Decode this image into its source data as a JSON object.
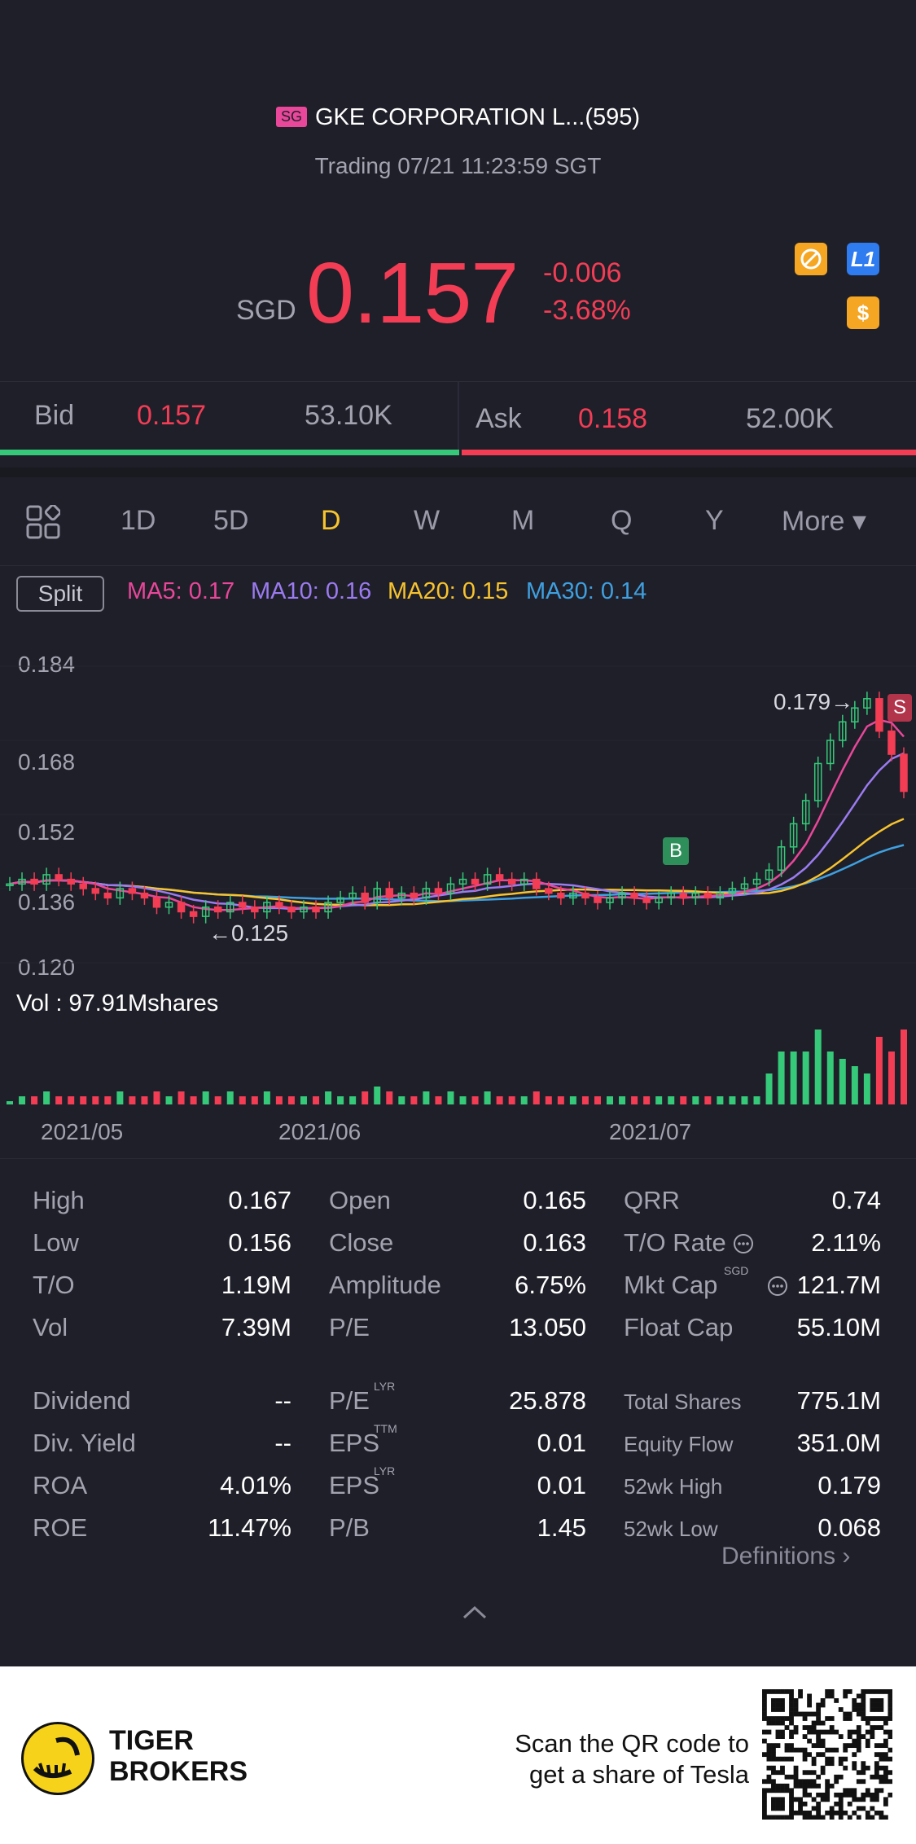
{
  "header": {
    "market_badge": "SG",
    "title": "GKE CORPORATION L...(595)",
    "status": "Trading 07/21 11:23:59 SGT"
  },
  "quote": {
    "currency": "SGD",
    "price": "0.157",
    "change": "-0.006",
    "change_pct": "-3.68%",
    "level_badge": "L1",
    "dollar_badge": "$"
  },
  "bid_ask": {
    "bid_label": "Bid",
    "bid_price": "0.157",
    "bid_size": "53.10K",
    "ask_label": "Ask",
    "ask_price": "0.158",
    "ask_size": "52.00K"
  },
  "period_tabs": [
    "1D",
    "5D",
    "D",
    "W",
    "M",
    "Q",
    "Y",
    "More ▾"
  ],
  "active_tab": "D",
  "indicators": {
    "split_label": "Split",
    "ma5": "MA5: 0.17",
    "ma10": "MA10: 0.16",
    "ma20": "MA20: 0.15",
    "ma30": "MA30: 0.14",
    "colors": {
      "ma5": "#e8479a",
      "ma10": "#9b7bf0",
      "ma20": "#f7c32e",
      "ma30": "#3fa0e0"
    }
  },
  "chart_data": {
    "type": "candlestick",
    "y_ticks": [
      "0.184",
      "0.168",
      "0.152",
      "0.136",
      "0.120"
    ],
    "ylim": [
      0.12,
      0.184
    ],
    "x_ticks": [
      "2021/05",
      "2021/06",
      "2021/07"
    ],
    "annotations": {
      "high": "0.179",
      "low": "0.125",
      "buy_marker": "B",
      "sell_marker": "S"
    },
    "closes": [
      0.137,
      0.138,
      0.137,
      0.139,
      0.138,
      0.137,
      0.136,
      0.135,
      0.134,
      0.136,
      0.135,
      0.134,
      0.132,
      0.133,
      0.131,
      0.13,
      0.132,
      0.131,
      0.133,
      0.132,
      0.131,
      0.133,
      0.132,
      0.131,
      0.132,
      0.131,
      0.133,
      0.134,
      0.135,
      0.133,
      0.136,
      0.134,
      0.135,
      0.134,
      0.136,
      0.135,
      0.137,
      0.138,
      0.137,
      0.139,
      0.138,
      0.137,
      0.138,
      0.136,
      0.135,
      0.134,
      0.135,
      0.134,
      0.133,
      0.134,
      0.135,
      0.134,
      0.133,
      0.134,
      0.135,
      0.134,
      0.135,
      0.134,
      0.135,
      0.136,
      0.137,
      0.138,
      0.14,
      0.145,
      0.15,
      0.155,
      0.163,
      0.168,
      0.172,
      0.175,
      0.177,
      0.17,
      0.165,
      0.157
    ],
    "volume_label": "Vol : 97.91Mshares"
  },
  "stats": {
    "col1": [
      {
        "label": "High",
        "value": "0.167"
      },
      {
        "label": "Low",
        "value": "0.156"
      },
      {
        "label": "T/O",
        "value": "1.19M"
      },
      {
        "label": "Vol",
        "value": "7.39M"
      },
      {
        "label": "Dividend",
        "value": "--"
      },
      {
        "label": "Div. Yield",
        "value": "--"
      },
      {
        "label": "ROA",
        "value": "4.01%"
      },
      {
        "label": "ROE",
        "value": "11.47%"
      }
    ],
    "col2": [
      {
        "label": "Open",
        "value": "0.165",
        "sup": ""
      },
      {
        "label": "Close",
        "value": "0.163",
        "sup": ""
      },
      {
        "label": "Amplitude",
        "value": "6.75%",
        "sup": ""
      },
      {
        "label": "P/E",
        "value": "13.050",
        "sup": ""
      },
      {
        "label": "P/E",
        "value": "25.878",
        "sup": "LYR"
      },
      {
        "label": "EPS",
        "value": "0.01",
        "sup": "TTM"
      },
      {
        "label": "EPS",
        "value": "0.01",
        "sup": "LYR"
      },
      {
        "label": "P/B",
        "value": "1.45",
        "sup": ""
      }
    ],
    "col3": [
      {
        "label": "QRR",
        "value": "0.74",
        "sup": ""
      },
      {
        "label": "T/O Rate",
        "value": "2.11%",
        "sup": ""
      },
      {
        "label": "Mkt Cap",
        "value": "121.7M",
        "sup": "SGD"
      },
      {
        "label": "Float Cap",
        "value": "55.10M",
        "sup": ""
      },
      {
        "label": "Total Shares",
        "value": "775.1M",
        "sup": ""
      },
      {
        "label": "Equity Flow",
        "value": "351.0M",
        "sup": ""
      },
      {
        "label": "52wk High",
        "value": "0.179",
        "sup": ""
      },
      {
        "label": "52wk Low",
        "value": "0.068",
        "sup": ""
      }
    ],
    "definitions_link": "Definitions ›"
  },
  "footer": {
    "brand_line1": "TIGER",
    "brand_line2": "BROKERS",
    "cta_line1": "Scan the QR code to",
    "cta_line2": "get a share of Tesla"
  }
}
